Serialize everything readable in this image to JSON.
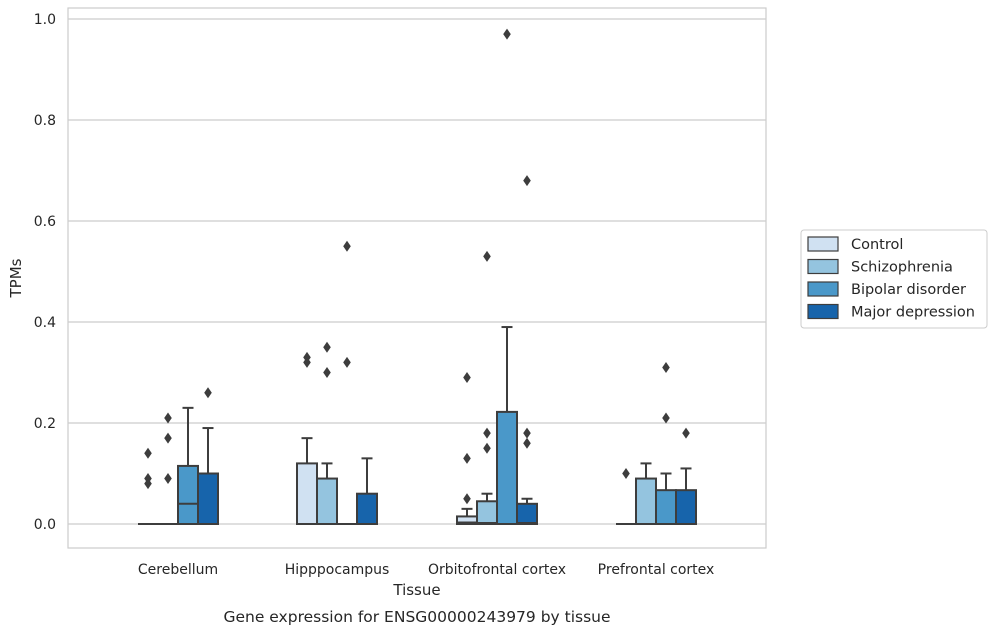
{
  "chart_data": {
    "type": "box",
    "title": "",
    "caption": "Gene expression for ENSG00000243979 by tissue",
    "xlabel": "Tissue",
    "ylabel": "TPMs",
    "ylim": [
      -0.045,
      1.02
    ],
    "yticks": [
      "0.0",
      "0.2",
      "0.4",
      "0.6",
      "0.8",
      "1.0"
    ],
    "grid": "horizontal",
    "legend": "right",
    "categories": [
      "Cerebellum",
      "Hipppocampus",
      "Orbitofrontal cortex",
      "Prefrontal cortex"
    ],
    "series": [
      {
        "name": "Control",
        "color": "#d0e1f2",
        "boxes": [
          {
            "q1": 0,
            "median": 0,
            "q3": 0,
            "whisker_low": 0,
            "whisker_high": 0,
            "outliers": [
              0.08,
              0.09,
              0.14
            ]
          },
          {
            "q1": 0,
            "median": 0,
            "q3": 0.12,
            "whisker_low": 0,
            "whisker_high": 0.17,
            "outliers": [
              0.32,
              0.33
            ]
          },
          {
            "q1": 0,
            "median": 0.003,
            "q3": 0.015,
            "whisker_low": 0,
            "whisker_high": 0.03,
            "outliers": [
              0.05,
              0.13,
              0.29
            ]
          },
          {
            "q1": 0,
            "median": 0,
            "q3": 0,
            "whisker_low": 0,
            "whisker_high": 0,
            "outliers": [
              0.1
            ]
          }
        ]
      },
      {
        "name": "Schizophrenia",
        "color": "#94c4df",
        "boxes": [
          {
            "q1": 0,
            "median": 0,
            "q3": 0,
            "whisker_low": 0,
            "whisker_high": 0,
            "outliers": [
              0.09,
              0.17,
              0.21
            ]
          },
          {
            "q1": 0,
            "median": 0,
            "q3": 0.09,
            "whisker_low": 0,
            "whisker_high": 0.12,
            "outliers": [
              0.3,
              0.35
            ]
          },
          {
            "q1": 0,
            "median": 0.002,
            "q3": 0.045,
            "whisker_low": 0,
            "whisker_high": 0.06,
            "outliers": [
              0.15,
              0.18,
              0.53
            ]
          },
          {
            "q1": 0,
            "median": 0,
            "q3": 0.09,
            "whisker_low": 0,
            "whisker_high": 0.12,
            "outliers": []
          }
        ]
      },
      {
        "name": "Bipolar disorder",
        "color": "#4a98c9",
        "boxes": [
          {
            "q1": 0,
            "median": 0.04,
            "q3": 0.115,
            "whisker_low": 0,
            "whisker_high": 0.23,
            "outliers": []
          },
          {
            "q1": 0,
            "median": 0,
            "q3": 0,
            "whisker_low": 0,
            "whisker_high": 0,
            "outliers": [
              0.32,
              0.55
            ]
          },
          {
            "q1": 0,
            "median": 0,
            "q3": 0.222,
            "whisker_low": 0,
            "whisker_high": 0.39,
            "outliers": [
              0.97
            ]
          },
          {
            "q1": 0,
            "median": 0,
            "q3": 0.067,
            "whisker_low": 0,
            "whisker_high": 0.1,
            "outliers": [
              0.21,
              0.31
            ]
          }
        ]
      },
      {
        "name": "Major depression",
        "color": "#1764ab",
        "boxes": [
          {
            "q1": 0,
            "median": 0,
            "q3": 0.1,
            "whisker_low": 0,
            "whisker_high": 0.19,
            "outliers": [
              0.26
            ]
          },
          {
            "q1": 0,
            "median": 0,
            "q3": 0.06,
            "whisker_low": 0,
            "whisker_high": 0.13,
            "outliers": []
          },
          {
            "q1": 0,
            "median": 0.002,
            "q3": 0.04,
            "whisker_low": 0,
            "whisker_high": 0.05,
            "outliers": [
              0.16,
              0.18,
              0.68
            ]
          },
          {
            "q1": 0,
            "median": 0,
            "q3": 0.067,
            "whisker_low": 0,
            "whisker_high": 0.11,
            "outliers": [
              0.18
            ]
          }
        ]
      }
    ]
  },
  "colors": {
    "grid": "#cccccc",
    "frame": "#cccccc",
    "box_edge": "#3d3d3d",
    "outlier": "#3d3d3d"
  }
}
